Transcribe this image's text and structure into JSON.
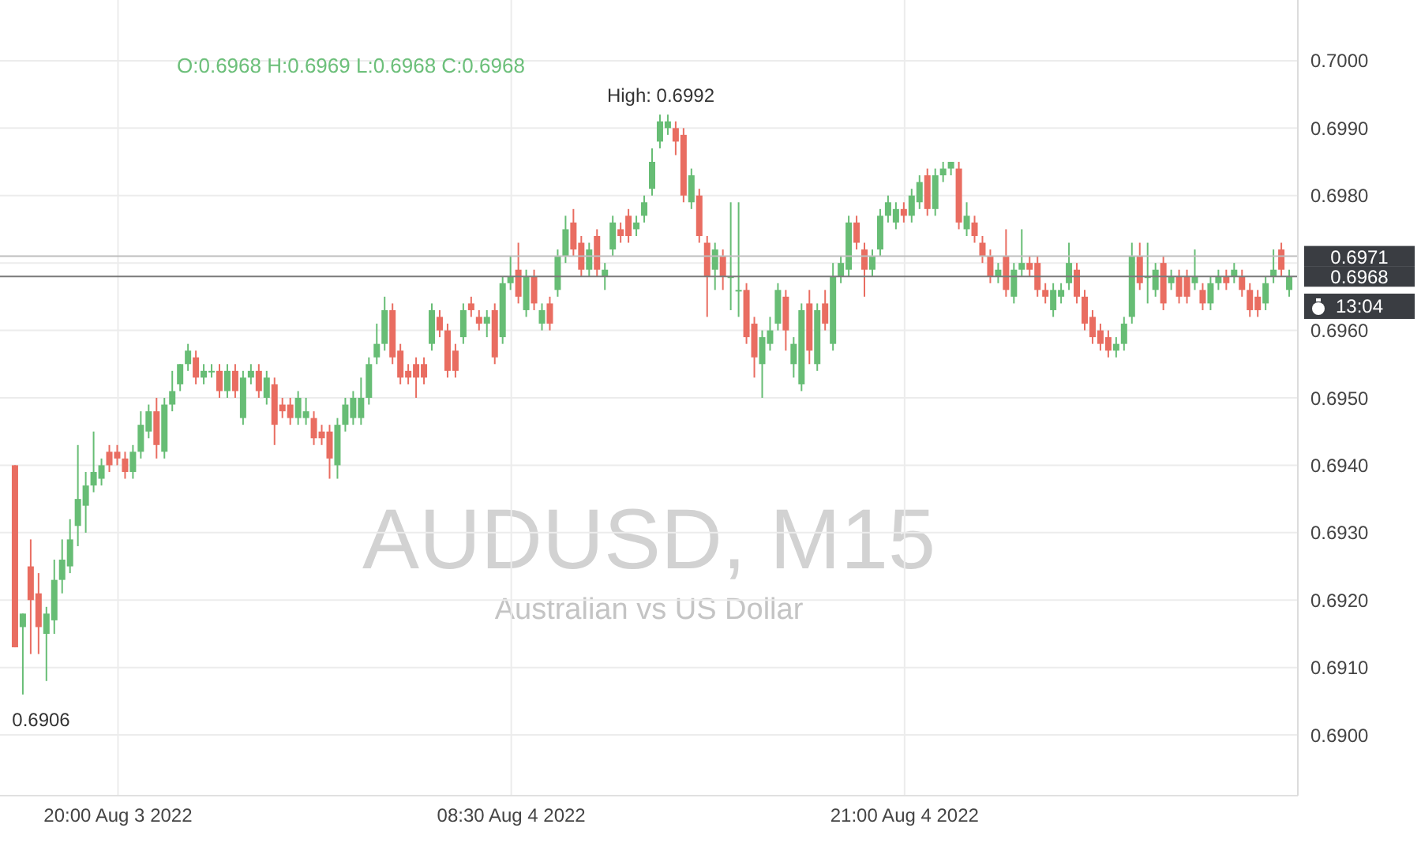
{
  "chart_data": {
    "type": "candlestick",
    "title": "AUDUSD, M15",
    "subtitle": "Australian vs US Dollar",
    "x": [
      "2022-08-03T16:45",
      "2022-08-03T17:00",
      "2022-08-03T17:15",
      "2022-08-03T17:30",
      "2022-08-03T17:45",
      "2022-08-03T18:00",
      "2022-08-03T18:15",
      "2022-08-03T18:30",
      "2022-08-03T18:45",
      "2022-08-03T19:00",
      "2022-08-03T19:15",
      "2022-08-03T19:30",
      "2022-08-03T19:45",
      "2022-08-03T20:00",
      "2022-08-03T20:15",
      "2022-08-03T20:30",
      "2022-08-03T20:45",
      "2022-08-03T21:00",
      "2022-08-03T21:15",
      "2022-08-03T21:30",
      "2022-08-03T21:45",
      "2022-08-03T22:00",
      "2022-08-03T22:15",
      "2022-08-03T22:30",
      "2022-08-03T22:45",
      "2022-08-03T23:00",
      "2022-08-03T23:15",
      "2022-08-03T23:30",
      "2022-08-03T23:45",
      "2022-08-04T00:00",
      "2022-08-04T00:15",
      "2022-08-04T00:30",
      "2022-08-04T00:45",
      "2022-08-04T01:00",
      "2022-08-04T01:15",
      "2022-08-04T01:30",
      "2022-08-04T01:45",
      "2022-08-04T02:00",
      "2022-08-04T02:15",
      "2022-08-04T02:30",
      "2022-08-04T02:45",
      "2022-08-04T03:00",
      "2022-08-04T03:15",
      "2022-08-04T03:30",
      "2022-08-04T03:45",
      "2022-08-04T04:00",
      "2022-08-04T04:15",
      "2022-08-04T04:30",
      "2022-08-04T04:45",
      "2022-08-04T05:00",
      "2022-08-04T05:15",
      "2022-08-04T05:30",
      "2022-08-04T05:45",
      "2022-08-04T06:00",
      "2022-08-04T06:15",
      "2022-08-04T06:30",
      "2022-08-04T06:45",
      "2022-08-04T07:00",
      "2022-08-04T07:15",
      "2022-08-04T07:30",
      "2022-08-04T07:45",
      "2022-08-04T08:00",
      "2022-08-04T08:15",
      "2022-08-04T08:30",
      "2022-08-04T08:45",
      "2022-08-04T09:00",
      "2022-08-04T09:15",
      "2022-08-04T09:30",
      "2022-08-04T09:45",
      "2022-08-04T10:00",
      "2022-08-04T10:15",
      "2022-08-04T10:30",
      "2022-08-04T10:45",
      "2022-08-04T11:00",
      "2022-08-04T11:15",
      "2022-08-04T11:30",
      "2022-08-04T11:45",
      "2022-08-04T12:00",
      "2022-08-04T12:15",
      "2022-08-04T12:30",
      "2022-08-04T12:45",
      "2022-08-04T13:00",
      "2022-08-04T13:15",
      "2022-08-04T13:30",
      "2022-08-04T13:45",
      "2022-08-04T14:00",
      "2022-08-04T14:15",
      "2022-08-04T14:30",
      "2022-08-04T14:45",
      "2022-08-04T15:00",
      "2022-08-04T15:15",
      "2022-08-04T15:30",
      "2022-08-04T15:45",
      "2022-08-04T16:00",
      "2022-08-04T16:15",
      "2022-08-04T16:30",
      "2022-08-04T16:45",
      "2022-08-04T17:00",
      "2022-08-04T17:15",
      "2022-08-04T17:30",
      "2022-08-04T17:45",
      "2022-08-04T18:00",
      "2022-08-04T18:15",
      "2022-08-04T18:30",
      "2022-08-04T18:45",
      "2022-08-04T19:00",
      "2022-08-04T19:15",
      "2022-08-04T19:30",
      "2022-08-04T19:45",
      "2022-08-04T20:00",
      "2022-08-04T20:15",
      "2022-08-04T20:30",
      "2022-08-04T20:45",
      "2022-08-04T21:00",
      "2022-08-04T21:15",
      "2022-08-04T21:30",
      "2022-08-04T21:45",
      "2022-08-04T22:00",
      "2022-08-04T22:15",
      "2022-08-04T22:30",
      "2022-08-04T22:45",
      "2022-08-04T23:00",
      "2022-08-04T23:15",
      "2022-08-04T23:30",
      "2022-08-04T23:45",
      "2022-08-05T00:00",
      "2022-08-05T00:15",
      "2022-08-05T00:30",
      "2022-08-05T00:45",
      "2022-08-05T01:00",
      "2022-08-05T01:15",
      "2022-08-05T01:30",
      "2022-08-05T01:45",
      "2022-08-05T02:00",
      "2022-08-05T02:15",
      "2022-08-05T02:30",
      "2022-08-05T02:45",
      "2022-08-05T03:00",
      "2022-08-05T03:15",
      "2022-08-05T03:30",
      "2022-08-05T03:45",
      "2022-08-05T04:00",
      "2022-08-05T04:15",
      "2022-08-05T04:30",
      "2022-08-05T04:45",
      "2022-08-05T05:00",
      "2022-08-05T05:15",
      "2022-08-05T05:30",
      "2022-08-05T05:45",
      "2022-08-05T06:00",
      "2022-08-05T06:15",
      "2022-08-05T06:30",
      "2022-08-05T06:45",
      "2022-08-05T07:00",
      "2022-08-05T07:15",
      "2022-08-05T07:30",
      "2022-08-05T07:45",
      "2022-08-05T08:00",
      "2022-08-05T08:15",
      "2022-08-05T08:30",
      "2022-08-05T08:45",
      "2022-08-05T09:00",
      "2022-08-05T09:15"
    ],
    "ohlc": [
      [
        0.694,
        0.694,
        0.6913,
        0.6913
      ],
      [
        0.6916,
        0.6918,
        0.6906,
        0.6918
      ],
      [
        0.6925,
        0.6929,
        0.6912,
        0.692
      ],
      [
        0.6921,
        0.6924,
        0.6912,
        0.6916
      ],
      [
        0.6915,
        0.6919,
        0.6908,
        0.6918
      ],
      [
        0.6917,
        0.6926,
        0.6915,
        0.6923
      ],
      [
        0.6923,
        0.6929,
        0.6921,
        0.6926
      ],
      [
        0.6925,
        0.6932,
        0.6924,
        0.6929
      ],
      [
        0.6931,
        0.6943,
        0.6928,
        0.6935
      ],
      [
        0.6934,
        0.6939,
        0.693,
        0.6937
      ],
      [
        0.6937,
        0.6945,
        0.6936,
        0.6939
      ],
      [
        0.6938,
        0.6941,
        0.6937,
        0.694
      ],
      [
        0.6942,
        0.6943,
        0.6939,
        0.694
      ],
      [
        0.6942,
        0.6943,
        0.694,
        0.6941
      ],
      [
        0.6941,
        0.6942,
        0.6938,
        0.6939
      ],
      [
        0.6939,
        0.6943,
        0.6938,
        0.6942
      ],
      [
        0.6942,
        0.6948,
        0.6941,
        0.6946
      ],
      [
        0.6945,
        0.6949,
        0.6944,
        0.6948
      ],
      [
        0.6948,
        0.695,
        0.6941,
        0.6943
      ],
      [
        0.6942,
        0.695,
        0.6941,
        0.6949
      ],
      [
        0.6949,
        0.6954,
        0.6948,
        0.6951
      ],
      [
        0.6952,
        0.6955,
        0.6951,
        0.6955
      ],
      [
        0.6955,
        0.6958,
        0.6954,
        0.6957
      ],
      [
        0.6956,
        0.6957,
        0.6952,
        0.6953
      ],
      [
        0.6953,
        0.6955,
        0.6952,
        0.6954
      ],
      [
        0.6954,
        0.6955,
        0.6953,
        0.6954
      ],
      [
        0.6954,
        0.6955,
        0.695,
        0.6951
      ],
      [
        0.6951,
        0.6955,
        0.695,
        0.6954
      ],
      [
        0.6954,
        0.6955,
        0.695,
        0.6951
      ],
      [
        0.6947,
        0.6954,
        0.6946,
        0.6953
      ],
      [
        0.6953,
        0.6955,
        0.6952,
        0.6954
      ],
      [
        0.6954,
        0.6955,
        0.695,
        0.6951
      ],
      [
        0.695,
        0.6954,
        0.6949,
        0.6953
      ],
      [
        0.6952,
        0.6953,
        0.6943,
        0.6946
      ],
      [
        0.6949,
        0.695,
        0.6947,
        0.6948
      ],
      [
        0.6949,
        0.695,
        0.6946,
        0.6947
      ],
      [
        0.6947,
        0.6951,
        0.6946,
        0.695
      ],
      [
        0.6947,
        0.695,
        0.6946,
        0.6948
      ],
      [
        0.6947,
        0.6948,
        0.6943,
        0.6944
      ],
      [
        0.6945,
        0.6946,
        0.6943,
        0.6944
      ],
      [
        0.6945,
        0.6946,
        0.6938,
        0.6941
      ],
      [
        0.694,
        0.6947,
        0.6938,
        0.6946
      ],
      [
        0.6946,
        0.695,
        0.6945,
        0.6949
      ],
      [
        0.6947,
        0.6951,
        0.6946,
        0.695
      ],
      [
        0.6947,
        0.6953,
        0.6946,
        0.695
      ],
      [
        0.695,
        0.6956,
        0.6949,
        0.6955
      ],
      [
        0.6956,
        0.6961,
        0.6955,
        0.6958
      ],
      [
        0.6958,
        0.6965,
        0.6957,
        0.6963
      ],
      [
        0.6963,
        0.6964,
        0.6955,
        0.6956
      ],
      [
        0.6957,
        0.6958,
        0.6952,
        0.6953
      ],
      [
        0.6954,
        0.6955,
        0.6952,
        0.6953
      ],
      [
        0.6955,
        0.6956,
        0.695,
        0.6953
      ],
      [
        0.6955,
        0.6956,
        0.6952,
        0.6953
      ],
      [
        0.6958,
        0.6964,
        0.6957,
        0.6963
      ],
      [
        0.6962,
        0.6963,
        0.6959,
        0.696
      ],
      [
        0.696,
        0.6961,
        0.6953,
        0.6954
      ],
      [
        0.6957,
        0.6958,
        0.6953,
        0.6954
      ],
      [
        0.6959,
        0.6964,
        0.6958,
        0.6963
      ],
      [
        0.6964,
        0.6965,
        0.6962,
        0.6963
      ],
      [
        0.6962,
        0.6963,
        0.696,
        0.6961
      ],
      [
        0.6961,
        0.6963,
        0.6959,
        0.6962
      ],
      [
        0.6963,
        0.6964,
        0.6955,
        0.6956
      ],
      [
        0.6959,
        0.6968,
        0.6958,
        0.6967
      ],
      [
        0.6967,
        0.6971,
        0.6966,
        0.6968
      ],
      [
        0.6969,
        0.6973,
        0.6964,
        0.6965
      ],
      [
        0.6963,
        0.6969,
        0.6962,
        0.6968
      ],
      [
        0.6968,
        0.6969,
        0.6963,
        0.6964
      ],
      [
        0.6961,
        0.6964,
        0.696,
        0.6963
      ],
      [
        0.6964,
        0.6965,
        0.696,
        0.6961
      ],
      [
        0.6966,
        0.6972,
        0.6965,
        0.6971
      ],
      [
        0.6971,
        0.6977,
        0.697,
        0.6975
      ],
      [
        0.6976,
        0.6978,
        0.6971,
        0.6972
      ],
      [
        0.6973,
        0.6974,
        0.6968,
        0.6969
      ],
      [
        0.6969,
        0.6973,
        0.6968,
        0.6972
      ],
      [
        0.6974,
        0.6975,
        0.6968,
        0.6969
      ],
      [
        0.6968,
        0.697,
        0.6966,
        0.6969
      ],
      [
        0.6972,
        0.6977,
        0.6971,
        0.6976
      ],
      [
        0.6975,
        0.6976,
        0.6973,
        0.6974
      ],
      [
        0.6977,
        0.6978,
        0.6973,
        0.6974
      ],
      [
        0.6975,
        0.6977,
        0.6974,
        0.6976
      ],
      [
        0.6977,
        0.698,
        0.6976,
        0.6979
      ],
      [
        0.6981,
        0.6987,
        0.698,
        0.6985
      ],
      [
        0.6988,
        0.6992,
        0.6987,
        0.6991
      ],
      [
        0.699,
        0.6992,
        0.6989,
        0.6991
      ],
      [
        0.699,
        0.6991,
        0.6986,
        0.6988
      ],
      [
        0.6989,
        0.699,
        0.6979,
        0.698
      ],
      [
        0.6979,
        0.6984,
        0.6978,
        0.6983
      ],
      [
        0.698,
        0.6981,
        0.6973,
        0.6974
      ],
      [
        0.6973,
        0.6974,
        0.6962,
        0.6968
      ],
      [
        0.6969,
        0.6973,
        0.6966,
        0.6972
      ],
      [
        0.6971,
        0.6972,
        0.6966,
        0.6968
      ],
      [
        0.6968,
        0.6979,
        0.6963,
        0.6968
      ],
      [
        0.6966,
        0.6979,
        0.6962,
        0.6966
      ],
      [
        0.6966,
        0.6967,
        0.6958,
        0.6959
      ],
      [
        0.6961,
        0.6962,
        0.6953,
        0.6956
      ],
      [
        0.6955,
        0.696,
        0.695,
        0.6959
      ],
      [
        0.6958,
        0.6962,
        0.6957,
        0.696
      ],
      [
        0.6961,
        0.6967,
        0.696,
        0.6966
      ],
      [
        0.6965,
        0.6966,
        0.6957,
        0.696
      ],
      [
        0.6955,
        0.6959,
        0.6953,
        0.6958
      ],
      [
        0.6952,
        0.6964,
        0.6951,
        0.6963
      ],
      [
        0.6964,
        0.6966,
        0.6955,
        0.6957
      ],
      [
        0.6955,
        0.6964,
        0.6954,
        0.6963
      ],
      [
        0.6964,
        0.6966,
        0.696,
        0.6961
      ],
      [
        0.6958,
        0.697,
        0.6957,
        0.6968
      ],
      [
        0.6968,
        0.6971,
        0.6967,
        0.697
      ],
      [
        0.6969,
        0.6977,
        0.6968,
        0.6976
      ],
      [
        0.6976,
        0.6977,
        0.6972,
        0.6973
      ],
      [
        0.6972,
        0.6973,
        0.6965,
        0.6969
      ],
      [
        0.6969,
        0.6972,
        0.6968,
        0.6971
      ],
      [
        0.6972,
        0.6978,
        0.6971,
        0.6977
      ],
      [
        0.6977,
        0.698,
        0.6976,
        0.6979
      ],
      [
        0.6976,
        0.6979,
        0.6975,
        0.6978
      ],
      [
        0.6978,
        0.6979,
        0.6976,
        0.6977
      ],
      [
        0.6977,
        0.6981,
        0.6976,
        0.698
      ],
      [
        0.6979,
        0.6983,
        0.6978,
        0.6982
      ],
      [
        0.6983,
        0.6984,
        0.6977,
        0.6978
      ],
      [
        0.6978,
        0.6984,
        0.6977,
        0.6983
      ],
      [
        0.6983,
        0.6985,
        0.6982,
        0.6984
      ],
      [
        0.6984,
        0.6985,
        0.6983,
        0.6985
      ],
      [
        0.6984,
        0.6985,
        0.6975,
        0.6976
      ],
      [
        0.6975,
        0.6979,
        0.6974,
        0.6977
      ],
      [
        0.6976,
        0.6977,
        0.6973,
        0.6974
      ],
      [
        0.6973,
        0.6974,
        0.697,
        0.6971
      ],
      [
        0.6971,
        0.6972,
        0.6967,
        0.6968
      ],
      [
        0.6968,
        0.697,
        0.6967,
        0.6969
      ],
      [
        0.6971,
        0.6975,
        0.6965,
        0.6966
      ],
      [
        0.6965,
        0.697,
        0.6964,
        0.6969
      ],
      [
        0.6969,
        0.6975,
        0.6968,
        0.697
      ],
      [
        0.697,
        0.6971,
        0.6968,
        0.6969
      ],
      [
        0.697,
        0.6971,
        0.6965,
        0.6966
      ],
      [
        0.6966,
        0.6967,
        0.6964,
        0.6965
      ],
      [
        0.6963,
        0.6967,
        0.6962,
        0.6966
      ],
      [
        0.6965,
        0.6967,
        0.6964,
        0.6966
      ],
      [
        0.6967,
        0.6973,
        0.6966,
        0.697
      ],
      [
        0.6969,
        0.697,
        0.6964,
        0.6965
      ],
      [
        0.6965,
        0.6966,
        0.696,
        0.6961
      ],
      [
        0.6962,
        0.6963,
        0.6958,
        0.6959
      ],
      [
        0.696,
        0.6961,
        0.6957,
        0.6958
      ],
      [
        0.6959,
        0.696,
        0.6956,
        0.6957
      ],
      [
        0.6957,
        0.6959,
        0.6956,
        0.6958
      ],
      [
        0.6958,
        0.6962,
        0.6957,
        0.6961
      ],
      [
        0.6962,
        0.6973,
        0.6961,
        0.6971
      ],
      [
        0.6971,
        0.6973,
        0.6966,
        0.6967
      ],
      [
        0.6968,
        0.6973,
        0.6964,
        0.6968
      ],
      [
        0.6966,
        0.697,
        0.6965,
        0.6969
      ],
      [
        0.697,
        0.6971,
        0.6963,
        0.6964
      ],
      [
        0.6967,
        0.6969,
        0.6966,
        0.6968
      ],
      [
        0.6968,
        0.6969,
        0.6964,
        0.6965
      ],
      [
        0.6968,
        0.6969,
        0.6964,
        0.6965
      ],
      [
        0.6967,
        0.6972,
        0.6966,
        0.6968
      ],
      [
        0.6966,
        0.6967,
        0.6963,
        0.6964
      ],
      [
        0.6964,
        0.6968,
        0.6963,
        0.6967
      ],
      [
        0.6967,
        0.6969,
        0.6966,
        0.6968
      ],
      [
        0.6968,
        0.6969,
        0.6966,
        0.6967
      ],
      [
        0.6968,
        0.697,
        0.6967,
        0.6969
      ],
      [
        0.6968,
        0.6969,
        0.6965,
        0.6966
      ],
      [
        0.6966,
        0.6967,
        0.6962,
        0.6963
      ],
      [
        0.6965,
        0.6966,
        0.6962,
        0.6963
      ],
      [
        0.6964,
        0.6968,
        0.6963,
        0.6967
      ],
      [
        0.6968,
        0.6972,
        0.6967,
        0.6969
      ],
      [
        0.6972,
        0.6973,
        0.6968,
        0.6969
      ],
      [
        0.6966,
        0.6969,
        0.6965,
        0.6968
      ]
    ],
    "colors": [
      "#e96d61",
      "#67bd75",
      "#e96d61",
      "#e96d61",
      "#67bd75",
      "#67bd75",
      "#67bd75",
      "#67bd75",
      "#67bd75",
      "#67bd75",
      "#67bd75",
      "#67bd75",
      "#e96d61",
      "#e96d61",
      "#e96d61",
      "#67bd75",
      "#67bd75",
      "#67bd75",
      "#e96d61",
      "#67bd75",
      "#67bd75",
      "#67bd75",
      "#67bd75",
      "#e96d61",
      "#67bd75",
      "#67bd75",
      "#e96d61",
      "#67bd75",
      "#e96d61",
      "#67bd75",
      "#67bd75",
      "#e96d61",
      "#67bd75",
      "#e96d61",
      "#e96d61",
      "#e96d61",
      "#67bd75",
      "#67bd75",
      "#e96d61",
      "#e96d61",
      "#e96d61",
      "#67bd75",
      "#67bd75",
      "#67bd75",
      "#67bd75",
      "#67bd75",
      "#67bd75",
      "#67bd75",
      "#e96d61",
      "#e96d61",
      "#e96d61",
      "#e96d61",
      "#e96d61",
      "#67bd75",
      "#e96d61",
      "#e96d61",
      "#e96d61",
      "#67bd75",
      "#e96d61",
      "#e96d61",
      "#67bd75",
      "#e96d61",
      "#67bd75",
      "#67bd75",
      "#e96d61",
      "#67bd75",
      "#e96d61",
      "#67bd75",
      "#e96d61",
      "#67bd75",
      "#67bd75",
      "#e96d61",
      "#e96d61",
      "#67bd75",
      "#e96d61",
      "#67bd75",
      "#67bd75",
      "#e96d61",
      "#e96d61",
      "#67bd75",
      "#67bd75",
      "#67bd75",
      "#67bd75",
      "#67bd75",
      "#e96d61",
      "#e96d61",
      "#67bd75",
      "#e96d61",
      "#e96d61",
      "#67bd75",
      "#e96d61",
      "#67bd75",
      "#67bd75",
      "#e96d61",
      "#e96d61",
      "#67bd75",
      "#67bd75",
      "#67bd75",
      "#e96d61",
      "#67bd75",
      "#67bd75",
      "#e96d61",
      "#67bd75",
      "#e96d61",
      "#67bd75",
      "#67bd75",
      "#67bd75",
      "#e96d61",
      "#e96d61",
      "#67bd75",
      "#67bd75",
      "#67bd75",
      "#67bd75",
      "#e96d61",
      "#67bd75",
      "#67bd75",
      "#e96d61",
      "#67bd75",
      "#67bd75",
      "#67bd75",
      "#e96d61",
      "#67bd75",
      "#e96d61",
      "#e96d61",
      "#e96d61",
      "#67bd75",
      "#e96d61",
      "#67bd75",
      "#67bd75",
      "#e96d61",
      "#e96d61",
      "#e96d61",
      "#67bd75",
      "#67bd75",
      "#67bd75",
      "#e96d61",
      "#e96d61",
      "#e96d61",
      "#e96d61",
      "#e96d61",
      "#67bd75",
      "#67bd75",
      "#67bd75",
      "#e96d61",
      "#67bd75",
      "#67bd75",
      "#e96d61",
      "#67bd75",
      "#e96d61",
      "#e96d61",
      "#67bd75",
      "#e96d61",
      "#67bd75",
      "#67bd75",
      "#e96d61",
      "#67bd75",
      "#e96d61",
      "#e96d61",
      "#e96d61",
      "#67bd75",
      "#67bd75",
      "#e96d61",
      "#67bd75"
    ],
    "xlim": [
      "2022-08-03T16:15",
      "2022-08-05T09:30"
    ],
    "xticks": [
      {
        "value": "2022-08-03T20:00",
        "label": "20:00 Aug 3 2022"
      },
      {
        "value": "2022-08-04T08:30",
        "label": "08:30 Aug 4 2022"
      },
      {
        "value": "2022-08-04T21:00",
        "label": "21:00 Aug 4 2022"
      }
    ],
    "ylim": [
      0.6891,
      0.7009
    ],
    "yticks": [
      {
        "value": 0.69,
        "label": "0.6900"
      },
      {
        "value": 0.691,
        "label": "0.6910"
      },
      {
        "value": 0.692,
        "label": "0.6920"
      },
      {
        "value": 0.693,
        "label": "0.6930"
      },
      {
        "value": 0.694,
        "label": "0.6940"
      },
      {
        "value": 0.695,
        "label": "0.6950"
      },
      {
        "value": 0.696,
        "label": "0.6960"
      },
      {
        "value": 0.697,
        "label": null
      },
      {
        "value": 0.698,
        "label": "0.6980"
      },
      {
        "value": 0.699,
        "label": "0.6990"
      },
      {
        "value": 0.7,
        "label": "0.7000"
      }
    ],
    "ref_lines": [
      {
        "axis": "y",
        "value": 0.6971,
        "label": "0.6971",
        "color": "#bdbdbd"
      },
      {
        "axis": "y",
        "value": 0.6968,
        "label": "0.6968",
        "color": "#7a7a7a"
      }
    ],
    "annotations": [
      "O:0.6968 H:0.6969 L:0.6968 C:0.6968",
      "13:04",
      {
        "text": "High: 0.6992",
        "x": "2022-08-04T13:15",
        "y": 0.6992
      },
      {
        "text": "0.6906",
        "x": "2022-08-03T17:00",
        "y": 0.6906
      }
    ],
    "grid": true
  }
}
